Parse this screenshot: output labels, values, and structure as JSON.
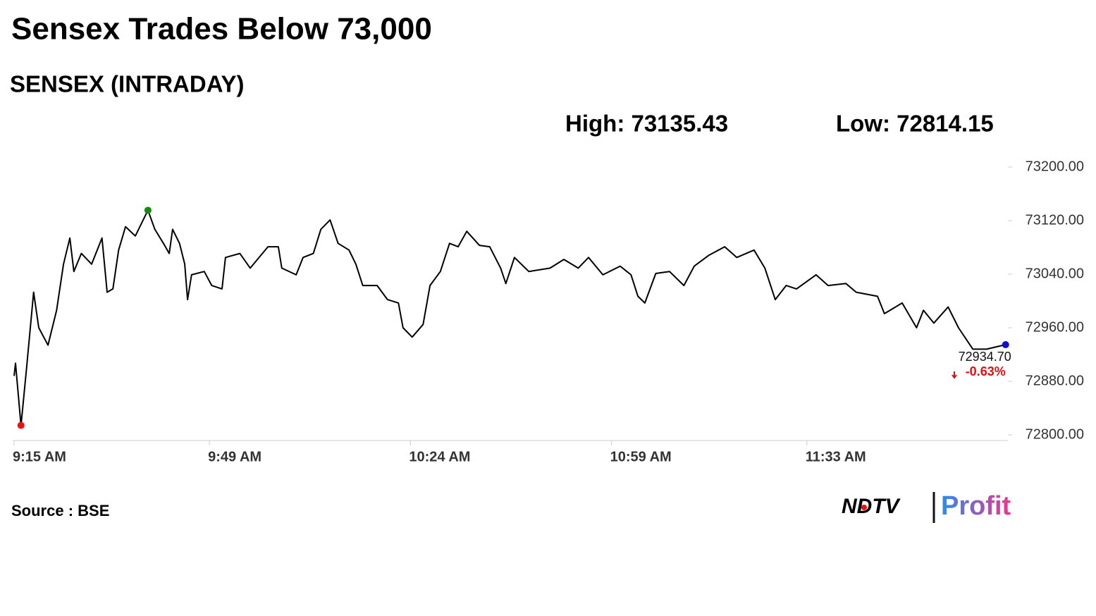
{
  "chart_data": {
    "type": "line",
    "title": "Sensex Trades Below 73,000",
    "subtitle": "SENSEX (INTRADAY)",
    "high_text": "High: 73135.43",
    "low_text": "Low: 72814.15",
    "last_value_label": "72934.70",
    "change_text": "-0.63%",
    "source": "Source : BSE",
    "logo": [
      "NDTV",
      "Profit"
    ],
    "x": [
      555,
      555.25,
      556.2,
      557.2,
      558.4,
      559.3,
      560.9,
      562.4,
      563.6,
      564.7,
      565.4,
      566.7,
      568.5,
      570.3,
      571.2,
      572.2,
      573.2,
      574.4,
      576.1,
      578.3,
      579.5,
      581,
      582,
      582.6,
      583.8,
      584.7,
      585.2,
      585.9,
      588.1,
      589.4,
      591.2,
      591.8,
      594.3,
      596.1,
      599.2,
      601,
      601.6,
      604.1,
      605.3,
      607.1,
      608.4,
      610,
      611.4,
      613.3,
      614.5,
      615.7,
      618.2,
      620,
      621.9,
      622.7,
      624.3,
      626.2,
      627.4,
      629.2,
      630.8,
      632.3,
      633.8,
      636,
      637.8,
      639.7,
      640.6,
      642.1,
      644.6,
      648.3,
      650.7,
      653.2,
      655,
      657.5,
      660.5,
      662.4,
      663.6,
      664.8,
      666.7,
      669.1,
      671.6,
      673.4,
      675.9,
      678.7,
      680.8,
      683.8,
      685.7,
      687.5,
      689.4,
      691.2,
      694.6,
      696.7,
      699.8,
      701.6,
      705.3,
      706.5,
      709.6,
      712.1,
      713.3,
      715.1,
      717.6,
      719.4,
      721.9,
      724.3,
      727.6
    ],
    "series": [
      {
        "name": "SENSEX",
        "color": "#000000",
        "values": [
          72888,
          72907,
          72814.15,
          72902,
          73013,
          72960,
          72934,
          72986,
          73055,
          73094,
          73044,
          73071,
          73055,
          73094,
          73013,
          73018,
          73076,
          73111,
          73097,
          73135.43,
          73107,
          73086,
          73071,
          73107,
          73086,
          73055,
          73002,
          73039,
          73044,
          73023,
          73018,
          73065,
          73071,
          73049,
          73081,
          73081,
          73049,
          73039,
          73065,
          73071,
          73107,
          73121,
          73086,
          73076,
          73055,
          73023,
          73023,
          73002,
          72997,
          72960,
          72946,
          72965,
          73023,
          73044,
          73086,
          73081,
          73104,
          73083,
          73081,
          73049,
          73026,
          73065,
          73044,
          73049,
          73062,
          73049,
          73065,
          73039,
          73052,
          73039,
          73007,
          72997,
          73041,
          73044,
          73023,
          73052,
          73068,
          73081,
          73065,
          73076,
          73049,
          73002,
          73023,
          73018,
          73039,
          73023,
          73026,
          73013,
          73007,
          72981,
          72997,
          72960,
          72986,
          72967,
          72991,
          72960,
          72928,
          72928,
          72934.7
        ]
      }
    ],
    "xlim": [
      555,
      728
    ],
    "xticks": [
      {
        "value": 555,
        "label": "9:15 AM"
      },
      {
        "value": 589,
        "label": "9:49 AM"
      },
      {
        "value": 624,
        "label": "10:24 AM"
      },
      {
        "value": 659,
        "label": "10:59 AM"
      },
      {
        "value": 693,
        "label": "11:33 AM"
      }
    ],
    "ylim": [
      72800,
      73200
    ],
    "yticks": [
      {
        "value": 72800,
        "label": "72800.00"
      },
      {
        "value": 72880,
        "label": "72880.00"
      },
      {
        "value": 72960,
        "label": "72960.00"
      },
      {
        "value": 73040,
        "label": "73040.00"
      },
      {
        "value": 73120,
        "label": "73120.00"
      },
      {
        "value": 73200,
        "label": "73200.00"
      }
    ],
    "grid": false,
    "high_color": "#118c11",
    "low_color": "#ee1111",
    "last_color": "#1010cc"
  }
}
